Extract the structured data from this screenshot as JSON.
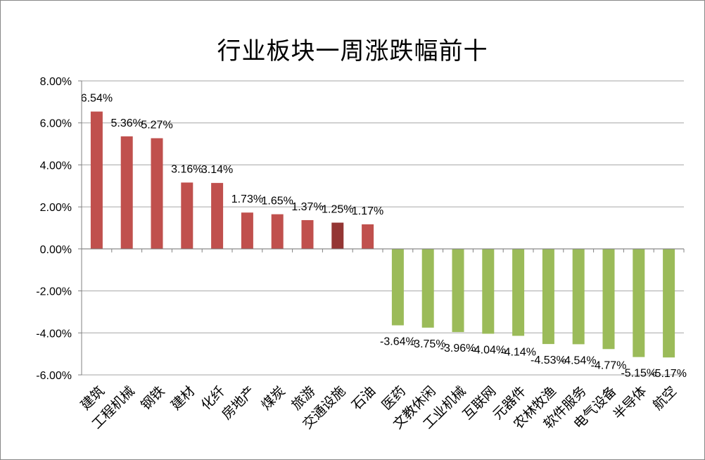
{
  "chart_data": {
    "type": "bar",
    "title": "行业板块一周涨跌幅前十",
    "xlabel": "",
    "ylabel": "",
    "ylim": [
      -6,
      8
    ],
    "y_ticks": [
      "8.00%",
      "6.00%",
      "4.00%",
      "2.00%",
      "0.00%",
      "-2.00%",
      "-4.00%",
      "-6.00%"
    ],
    "grid": true,
    "legend": "none",
    "categories": [
      "建筑",
      "工程机械",
      "钢铁",
      "建材",
      "化纤",
      "房地产",
      "煤炭",
      "旅游",
      "交通设施",
      "石油",
      "医药",
      "文教休闲",
      "工业机械",
      "互联网",
      "元器件",
      "农林牧渔",
      "软件服务",
      "电气设备",
      "半导体",
      "航空"
    ],
    "values": [
      6.54,
      5.36,
      5.27,
      3.16,
      3.14,
      1.73,
      1.65,
      1.37,
      1.25,
      1.17,
      -3.64,
      -3.75,
      -3.96,
      -4.04,
      -4.14,
      -4.53,
      -4.54,
      -4.77,
      -5.15,
      -5.17
    ],
    "data_labels": [
      "6.54%",
      "5.36%",
      "5.27%",
      "3.16%",
      "3.14%",
      "1.73%",
      "1.65%",
      "1.37%",
      "1.25%",
      "1.17%",
      "-3.64%",
      "-3.75%",
      "-3.96%",
      "-4.04%",
      "-4.14%",
      "-4.53%",
      "-4.54%",
      "-4.77%",
      "-5.15%",
      "-5.17%"
    ],
    "colors": {
      "positive": "#c0504d",
      "highlight": "#943634",
      "negative": "#9bbb59",
      "grid": "#a6a6a6",
      "axis": "#808080"
    },
    "highlight_index": 8
  }
}
